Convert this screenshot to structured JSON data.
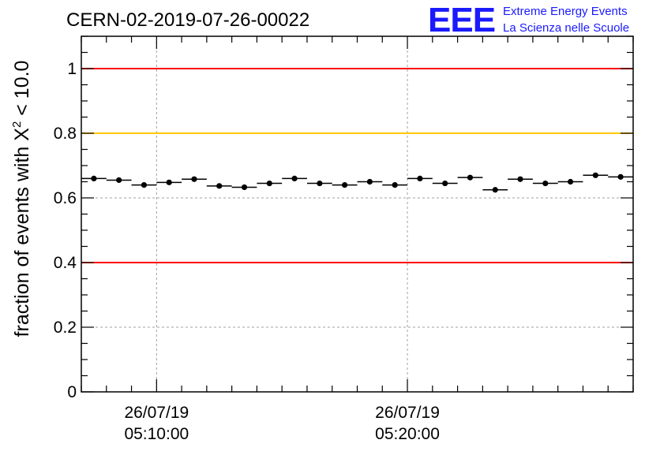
{
  "header": {
    "run_title": "CERN-02-2019-07-26-00022",
    "logo_letters": "EEE",
    "logo_line1": "Extreme Energy Events",
    "logo_line2": "La Scienza nelle Scuole"
  },
  "chart_data": {
    "type": "scatter",
    "title": "CERN-02-2019-07-26-00022",
    "ylabel_prefix": "fraction of events with ",
    "ylabel_symbol": "X",
    "ylabel_exponent": "2",
    "ylabel_suffix": " < 10.0",
    "xlabel": "",
    "ylim": [
      0,
      1.1
    ],
    "xlim": [
      "2019-07-26 05:07:00",
      "2019-07-26 05:29:00"
    ],
    "yticks": [
      0,
      0.2,
      0.4,
      0.6,
      0.8,
      1
    ],
    "ytick_labels": [
      "0",
      "0.2",
      "0.4",
      "0.6",
      "0.8",
      "1"
    ],
    "xticks": [
      {
        "date": "26/07/19",
        "time": "05:10:00",
        "value": "2019-07-26 05:10:00"
      },
      {
        "date": "26/07/19",
        "time": "05:20:00",
        "value": "2019-07-26 05:20:00"
      }
    ],
    "grid": true,
    "reference_lines": [
      {
        "y": 1.0,
        "color": "#ff0000"
      },
      {
        "y": 0.8,
        "color": "#ffc800"
      },
      {
        "y": 0.4,
        "color": "#ff0000"
      }
    ],
    "series": [
      {
        "marker_color": "#000000",
        "x": [
          "2019-07-26 05:07:30",
          "2019-07-26 05:08:30",
          "2019-07-26 05:09:30",
          "2019-07-26 05:10:30",
          "2019-07-26 05:11:30",
          "2019-07-26 05:12:30",
          "2019-07-26 05:13:30",
          "2019-07-26 05:14:30",
          "2019-07-26 05:15:30",
          "2019-07-26 05:16:30",
          "2019-07-26 05:17:30",
          "2019-07-26 05:18:30",
          "2019-07-26 05:19:30",
          "2019-07-26 05:20:30",
          "2019-07-26 05:21:30",
          "2019-07-26 05:22:30",
          "2019-07-26 05:23:30",
          "2019-07-26 05:24:30",
          "2019-07-26 05:25:30",
          "2019-07-26 05:26:30",
          "2019-07-26 05:27:30",
          "2019-07-26 05:28:30"
        ],
        "y": [
          0.66,
          0.655,
          0.64,
          0.648,
          0.658,
          0.637,
          0.633,
          0.645,
          0.66,
          0.645,
          0.64,
          0.65,
          0.64,
          0.66,
          0.645,
          0.663,
          0.625,
          0.658,
          0.645,
          0.65,
          0.67,
          0.665
        ],
        "y_err": 0.006,
        "x_halfwidth_minutes": 0.5
      }
    ]
  }
}
